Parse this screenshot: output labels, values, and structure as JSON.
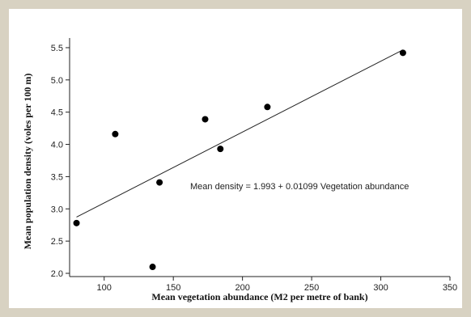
{
  "chart_data": {
    "type": "scatter",
    "title": "",
    "xlabel": "Mean vegetation abundance (M2 per metre of bank)",
    "ylabel": "Mean population density (voles per 100 m)",
    "xlim": [
      75,
      350
    ],
    "ylim": [
      1.95,
      5.65
    ],
    "x_ticks": [
      100,
      150,
      200,
      250,
      300,
      350
    ],
    "y_ticks": [
      2.0,
      2.5,
      3.0,
      3.5,
      4.0,
      4.5,
      5.0,
      5.5
    ],
    "x_tick_labels": [
      "100",
      "150",
      "200",
      "250",
      "300",
      "350"
    ],
    "y_tick_labels": [
      "2.0",
      "2.5",
      "3.0",
      "3.5",
      "4.0",
      "4.5",
      "5.0",
      "5.5"
    ],
    "points": [
      {
        "x": 80,
        "y": 2.78
      },
      {
        "x": 108,
        "y": 4.16
      },
      {
        "x": 135,
        "y": 2.1
      },
      {
        "x": 140,
        "y": 3.41
      },
      {
        "x": 173,
        "y": 4.39
      },
      {
        "x": 184,
        "y": 3.93
      },
      {
        "x": 218,
        "y": 4.58
      },
      {
        "x": 316,
        "y": 5.42
      }
    ],
    "regression": {
      "intercept": 1.993,
      "slope": 0.01099,
      "x_range": [
        80,
        316
      ],
      "label": "Mean density =  1.993 + 0.01099 Vegetation abundance"
    },
    "grid": false,
    "legend": "none"
  }
}
